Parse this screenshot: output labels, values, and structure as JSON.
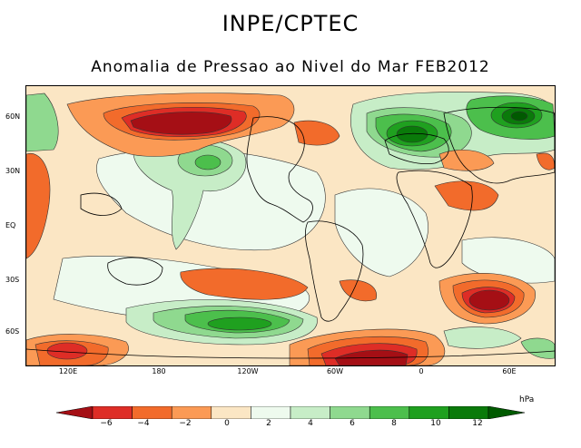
{
  "header": {
    "title": "INPE/CPTEC",
    "subtitle": "Anomalia de Pressao ao Nivel do Mar FEB2012"
  },
  "map": {
    "lat_labels": [
      "60N",
      "30N",
      "EQ",
      "30S",
      "60S"
    ],
    "lon_labels": [
      "120E",
      "180",
      "120W",
      "60W",
      "0",
      "60E"
    ]
  },
  "legend": {
    "unit": "hPa",
    "tick_labels": [
      "−6",
      "−4",
      "−2",
      "0",
      "2",
      "4",
      "6",
      "8",
      "10",
      "12"
    ],
    "colors": [
      "#a50f15",
      "#de2d26",
      "#f26b2b",
      "#fb9a55",
      "#fbe6c4",
      "#eefaee",
      "#c7edc7",
      "#8fd98f",
      "#4cbf4c",
      "#1fa01f",
      "#0a7a0a",
      "#005a00"
    ]
  }
}
